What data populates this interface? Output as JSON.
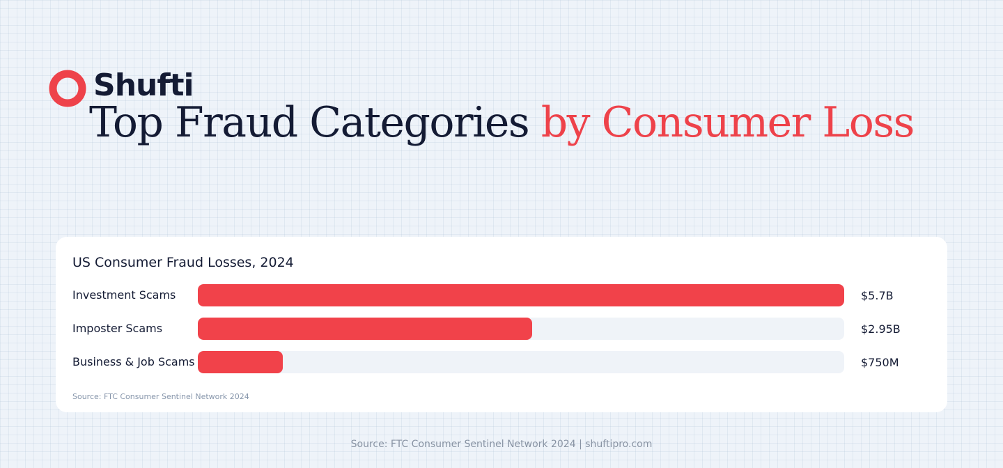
{
  "brand": {
    "name": "Shufti",
    "color": "#ee424a"
  },
  "headline": {
    "main": "Top Fraud Categories ",
    "accent": "by Consumer Loss"
  },
  "chart_data": {
    "type": "bar",
    "orientation": "horizontal",
    "title": "US Consumer Fraud Losses, 2024",
    "categories": [
      "Investment Scams",
      "Imposter Scams",
      "Business & Job Scams"
    ],
    "values": [
      5700000000,
      2950000000,
      750000000
    ],
    "value_labels": [
      "$5.7B",
      "$2.95B",
      "$750M"
    ],
    "xlim": [
      0,
      5700000000
    ],
    "bar_color": "#f1424a",
    "track_color": "#eff3f8",
    "source": "Source: FTC Consumer Sentinel Network 2024"
  },
  "footer": {
    "text": "Source: FTC Consumer Sentinel Network 2024 | shuftipro.com"
  }
}
